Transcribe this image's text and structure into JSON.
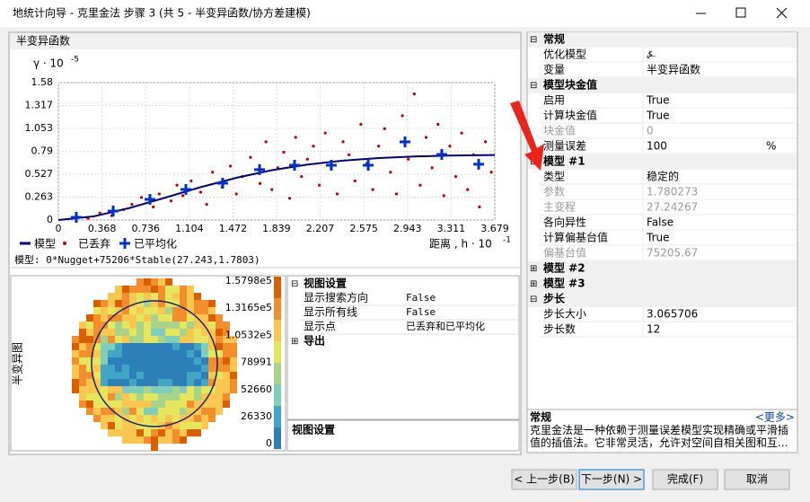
{
  "window": {
    "title": "地统计向导 - 克里金法 步骤 3 (共 5 - 半变异函数/协方差建模)"
  },
  "semivariogram": {
    "panel_title": "半变异函数",
    "y_label": "γ · 10",
    "y_exponent": "-5",
    "x_label": "距离 , h · 10",
    "x_exponent": "-1",
    "xlim": [
      0,
      3.679
    ],
    "ylim": [
      0,
      1.58
    ],
    "xticks": [
      0,
      0.368,
      0.736,
      1.104,
      1.472,
      1.839,
      2.207,
      2.575,
      2.943,
      3.311,
      3.679
    ],
    "yticks": [
      0,
      0.263,
      0.527,
      0.79,
      1.053,
      1.317,
      1.58
    ],
    "grid": true,
    "legend": [
      "模型",
      "已丢弃",
      "已平均化"
    ],
    "model_curve": {
      "color": "#000080",
      "x": [
        0,
        0.3,
        0.6,
        0.9,
        1.2,
        1.5,
        1.8,
        2.1,
        2.4,
        2.7,
        3.0,
        3.3,
        3.679
      ],
      "y": [
        0,
        0.043,
        0.138,
        0.257,
        0.378,
        0.485,
        0.573,
        0.638,
        0.683,
        0.713,
        0.731,
        0.741,
        0.747
      ]
    },
    "discarded": {
      "color": "#c00000",
      "x": [
        0.25,
        0.35,
        0.45,
        0.55,
        0.62,
        0.7,
        0.8,
        0.85,
        0.95,
        1.0,
        1.05,
        1.12,
        1.2,
        1.25,
        1.3,
        1.38,
        1.45,
        1.5,
        1.55,
        1.62,
        1.7,
        1.75,
        1.8,
        1.85,
        1.9,
        1.95,
        2.0,
        2.05,
        2.1,
        2.15,
        2.2,
        2.25,
        2.3,
        2.35,
        2.4,
        2.45,
        2.5,
        2.55,
        2.6,
        2.65,
        2.7,
        2.75,
        2.8,
        2.85,
        2.9,
        2.95,
        3.0,
        3.05,
        3.1,
        3.15,
        3.2,
        3.25,
        3.3,
        3.35,
        3.4,
        3.45,
        3.5,
        3.55,
        3.6,
        3.65
      ],
      "y": [
        0.02,
        0.08,
        0.05,
        0.12,
        0.18,
        0.26,
        0.15,
        0.3,
        0.22,
        0.4,
        0.28,
        0.45,
        0.32,
        0.18,
        0.55,
        0.38,
        0.62,
        0.3,
        0.5,
        0.72,
        0.42,
        0.9,
        0.35,
        0.6,
        0.78,
        0.25,
        0.95,
        0.5,
        0.7,
        0.85,
        0.4,
        1.0,
        0.6,
        0.3,
        0.9,
        0.75,
        0.45,
        1.1,
        0.65,
        0.35,
        0.85,
        1.05,
        0.55,
        0.3,
        1.2,
        0.7,
        1.45,
        0.4,
        0.95,
        0.6,
        1.1,
        0.28,
        0.85,
        0.5,
        1.0,
        0.35,
        0.75,
        0.15,
        0.9,
        0.55
      ]
    },
    "averaged": {
      "color": "#0030d0",
      "x": [
        0.151,
        0.462,
        0.772,
        1.075,
        1.385,
        1.696,
        1.991,
        2.301,
        2.612,
        2.922,
        3.232,
        3.543
      ],
      "y": [
        0.031,
        0.103,
        0.238,
        0.351,
        0.424,
        0.579,
        0.63,
        0.63,
        0.63,
        0.899,
        0.754,
        0.641
      ]
    },
    "model_text": "模型: 0*Nugget+75206*Stable(27.243,1.7803)"
  },
  "surface": {
    "side_label": "半变异图",
    "colorbar_labels": [
      "1.5798e5",
      "1.3165e5",
      "1.0532e5",
      "78991",
      "52660",
      "26330",
      "0"
    ]
  },
  "view_settings": {
    "section": "视图设置",
    "rows": [
      {
        "label": "显示搜索方向",
        "value": "False"
      },
      {
        "label": "显示所有线",
        "value": "False"
      },
      {
        "label": "显示点",
        "value": "已丢弃和已平均化"
      }
    ],
    "export": "导出",
    "footer": "视图设置"
  },
  "properties": {
    "sections": [
      {
        "title": "常规",
        "collapsed": false,
        "rows": [
          {
            "label": "优化模型",
            "value": "⍼"
          },
          {
            "label": "变量",
            "value": "半变异函数"
          }
        ]
      },
      {
        "title": "模型块金值",
        "collapsed": false,
        "rows": [
          {
            "label": "启用",
            "value": "True"
          },
          {
            "label": "计算块金值",
            "value": "True"
          },
          {
            "label": "块金值",
            "value": "0",
            "disabled": true
          },
          {
            "label": "测量误差",
            "value": "100",
            "unit": "%"
          }
        ]
      },
      {
        "title": "模型 #1",
        "collapsed": false,
        "rows": [
          {
            "label": "类型",
            "value": "稳定的"
          },
          {
            "label": "参数",
            "value": "1.780273",
            "disabled": true
          },
          {
            "label": "主变程",
            "value": "27.24267",
            "disabled": true
          },
          {
            "label": "各向异性",
            "value": "False"
          },
          {
            "label": "计算偏基台值",
            "value": "True"
          },
          {
            "label": "偏基台值",
            "value": "75205.67",
            "disabled": true
          }
        ]
      },
      {
        "title": "模型 #2",
        "collapsed": true,
        "rows": []
      },
      {
        "title": "模型 #3",
        "collapsed": true,
        "rows": []
      },
      {
        "title": "步长",
        "collapsed": false,
        "rows": [
          {
            "label": "步长大小",
            "value": "3.065706"
          },
          {
            "label": "步长数",
            "value": "12"
          }
        ]
      }
    ]
  },
  "description": {
    "title": "常规",
    "more": "<更多>",
    "text": "克里金法是一种依赖于测量误差模型实现精确或平滑插值的插值法。它非常灵活，允许对空间自相关图和互..."
  },
  "buttons": [
    "< 上一步(B)",
    "下一步(N) >",
    "完成(F)",
    "取消"
  ]
}
